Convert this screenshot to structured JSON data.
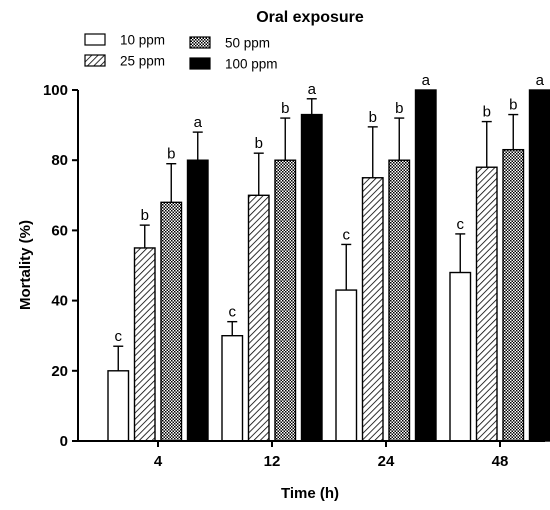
{
  "chart_data": {
    "type": "bar",
    "title": "Oral exposure",
    "xlabel": "Time (h)",
    "ylabel": "Mortality (%)",
    "ylim": [
      0,
      100
    ],
    "yticks": [
      "0",
      "20",
      "40",
      "60",
      "80",
      "100"
    ],
    "categories": [
      "4",
      "12",
      "24",
      "48"
    ],
    "legend_placement": "top-left",
    "grid": false,
    "series": [
      {
        "name": "10 ppm",
        "pattern": "white",
        "values": [
          20,
          30,
          43,
          48
        ],
        "errors": [
          7,
          4,
          13,
          11
        ],
        "letters": [
          "c",
          "c",
          "c",
          "c"
        ]
      },
      {
        "name": "25 ppm",
        "pattern": "diagonal-hatch",
        "values": [
          55,
          70,
          75,
          78
        ],
        "errors": [
          6.5,
          12,
          14.5,
          13
        ],
        "letters": [
          "b",
          "b",
          "b",
          "b"
        ]
      },
      {
        "name": "50 ppm",
        "pattern": "checkered",
        "values": [
          68,
          80,
          80,
          83
        ],
        "errors": [
          11,
          12,
          12,
          10
        ],
        "letters": [
          "b",
          "b",
          "b",
          "b"
        ]
      },
      {
        "name": "100 ppm",
        "pattern": "black",
        "values": [
          80,
          93,
          100,
          100
        ],
        "errors": [
          8,
          4.5,
          0,
          0
        ],
        "letters": [
          "a",
          "a",
          "a",
          "a"
        ]
      }
    ]
  }
}
